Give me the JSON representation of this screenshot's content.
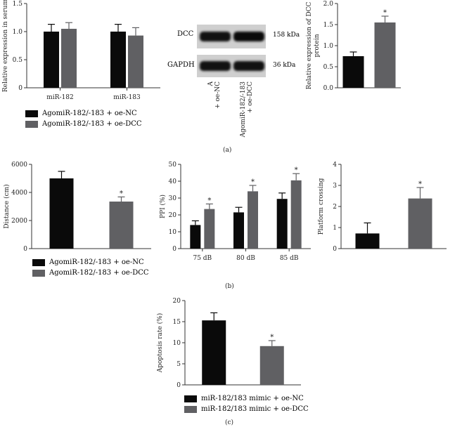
{
  "colors": {
    "black": "#0a0a0a",
    "gray": "#606063"
  },
  "labels": {
    "a": "(a)",
    "b": "(b)",
    "c": "(c)"
  },
  "blot": {
    "rows": [
      {
        "name": "DCC",
        "size": "158 kDa"
      },
      {
        "name": "GAPDH",
        "size": "36 kDa"
      }
    ],
    "lanes": [
      "AgomiR-182/-183 + oe-NC",
      "AgomiR-182/-183 + oe-DCC"
    ]
  },
  "legends": {
    "agomir": [
      "AgomiR-182/-183 + oe-NC",
      "AgomiR-182/-183 + oe-DCC"
    ],
    "mimic": [
      "miR-182/183 mimic + oe-NC",
      "miR-182/183 mimic + oe-DCC"
    ]
  },
  "chart_data": [
    {
      "id": "serum",
      "type": "bar",
      "categories": [
        "miR-182",
        "miR-183"
      ],
      "series": [
        {
          "values": [
            1.0,
            1.0
          ],
          "errors": [
            0.13,
            0.13
          ]
        },
        {
          "values": [
            1.05,
            0.93
          ],
          "errors": [
            0.11,
            0.14
          ]
        }
      ],
      "ylabel": "Relative expression in serum",
      "ylim": [
        0,
        1.5
      ],
      "yticks": [
        "0",
        "0.5",
        "1.0",
        "1.5"
      ],
      "significance": [
        [
          "",
          ""
        ],
        [
          "",
          ""
        ]
      ]
    },
    {
      "id": "dcc",
      "type": "bar",
      "categories": [
        "",
        ""
      ],
      "series": [
        {
          "values": [
            0.75,
            null
          ],
          "errors": [
            0.1,
            null
          ]
        },
        {
          "values": [
            null,
            1.55
          ],
          "errors": [
            null,
            0.15
          ]
        }
      ],
      "ylabel": "Relative expression of DCC protein",
      "ylim": [
        0,
        2.0
      ],
      "yticks": [
        "0.0",
        "0.5",
        "1.0",
        "1.5",
        "2.0"
      ],
      "significance": [
        [
          "",
          ""
        ],
        [
          "",
          "*"
        ]
      ]
    },
    {
      "id": "distance",
      "type": "bar",
      "categories": [
        "",
        ""
      ],
      "series": [
        {
          "values": [
            5000,
            null
          ],
          "errors": [
            500,
            null
          ]
        },
        {
          "values": [
            null,
            3350
          ],
          "errors": [
            null,
            330
          ]
        }
      ],
      "ylabel": "Distance (cm)",
      "ylim": [
        0,
        6000
      ],
      "yticks": [
        "0",
        "2000",
        "4000",
        "6000"
      ],
      "significance": [
        [
          "",
          ""
        ],
        [
          "",
          "*"
        ]
      ]
    },
    {
      "id": "ppi",
      "type": "bar",
      "categories": [
        "75 dB",
        "80 dB",
        "85 dB"
      ],
      "series": [
        {
          "values": [
            14,
            21.5,
            29.5
          ],
          "errors": [
            2.5,
            3,
            3.5
          ]
        },
        {
          "values": [
            23.5,
            34,
            40.5
          ],
          "errors": [
            3,
            3.5,
            4
          ]
        }
      ],
      "ylabel": "PPI (%)",
      "ylim": [
        0,
        50
      ],
      "yticks": [
        "0",
        "10",
        "20",
        "30",
        "40",
        "50"
      ],
      "significance": [
        [
          "",
          "",
          ""
        ],
        [
          "*",
          "*",
          "*"
        ]
      ]
    },
    {
      "id": "platform",
      "type": "bar",
      "categories": [
        "",
        ""
      ],
      "series": [
        {
          "values": [
            0.72,
            null
          ],
          "errors": [
            0.5,
            null
          ]
        },
        {
          "values": [
            null,
            2.38
          ],
          "errors": [
            null,
            0.52
          ]
        }
      ],
      "ylabel": "Platform crossing",
      "ylim": [
        0,
        4
      ],
      "yticks": [
        "0",
        "1",
        "2",
        "3",
        "4"
      ],
      "significance": [
        [
          "",
          ""
        ],
        [
          "",
          "*"
        ]
      ]
    },
    {
      "id": "apoptosis",
      "type": "bar",
      "categories": [
        "",
        ""
      ],
      "series": [
        {
          "values": [
            15.3,
            null
          ],
          "errors": [
            1.8,
            null
          ]
        },
        {
          "values": [
            null,
            9.2
          ],
          "errors": [
            null,
            1.3
          ]
        }
      ],
      "ylabel": "Apoptosis rate (%)",
      "ylim": [
        0,
        20
      ],
      "yticks": [
        "0",
        "5",
        "10",
        "15",
        "20"
      ],
      "significance": [
        [
          "",
          ""
        ],
        [
          "",
          "*"
        ]
      ]
    }
  ]
}
